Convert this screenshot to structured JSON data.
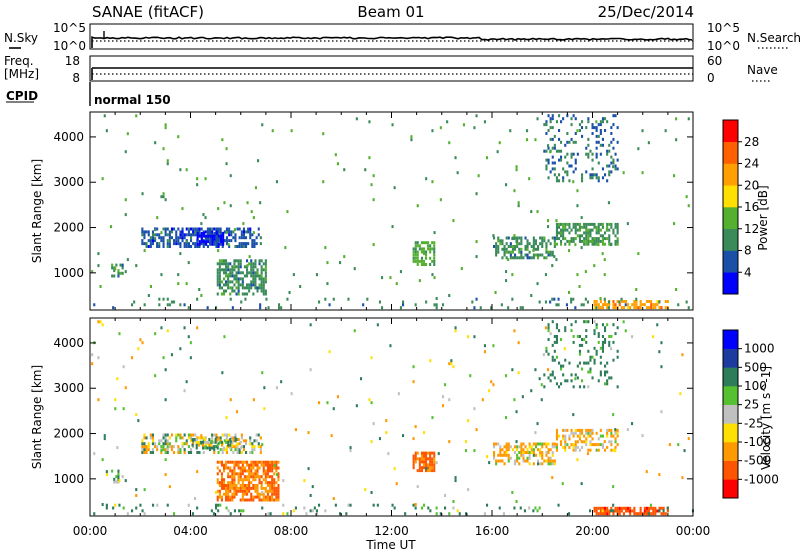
{
  "header": {
    "station": "SANAE (fitACF)",
    "beam": "Beam 01",
    "date": "25/Dec/2014"
  },
  "status_panels": {
    "nsky_label": "N.Sky",
    "nsearch_label": "N.Search",
    "freq_label_1": "Freq.",
    "freq_label_2": "[MHz]",
    "nave_label": "Nave",
    "cpid_label": "CPID",
    "cpid_value": "normal 150",
    "noise_ticks_left": [
      "10^5",
      "10^0"
    ],
    "noise_ticks_right": [
      "10^5",
      "10^0"
    ],
    "freq_ticks_left": [
      "18",
      "8"
    ],
    "nave_ticks_right": [
      "60",
      "0"
    ]
  },
  "colors": {
    "power_scale": [
      "#0000ff",
      "#1a50a8",
      "#3a8a5a",
      "#55b030",
      "#ffe000",
      "#ffa000",
      "#ff6000",
      "#ff0000"
    ],
    "velocity_scale": [
      "#ff0000",
      "#ff5500",
      "#ff9900",
      "#ffe000",
      "#c0c0c0",
      "#55c030",
      "#2e7d5a",
      "#1e3ca0",
      "#0000ff"
    ]
  },
  "chart_data": [
    {
      "type": "heatmap",
      "id": "power",
      "xlabel": "",
      "ylabel": "Slant Range [km]",
      "xlim": [
        0,
        24
      ],
      "ylim": [
        180,
        4550
      ],
      "yticks": [
        "1000",
        "2000",
        "3000",
        "4000"
      ],
      "colorbar_label": "Power [dB]",
      "colorbar_ticks": [
        "4",
        "8",
        "12",
        "16",
        "20",
        "24",
        "28"
      ],
      "colorbar_range": [
        0,
        32
      ],
      "regions": [
        {
          "t": [
            2.0,
            6.8
          ],
          "r": [
            1550,
            2000
          ],
          "v": 6,
          "density": 0.55
        },
        {
          "t": [
            4.2,
            5.3
          ],
          "r": [
            1600,
            1900
          ],
          "v": 3,
          "density": 0.8
        },
        {
          "t": [
            5.0,
            7.0
          ],
          "r": [
            500,
            1300
          ],
          "v": 10,
          "density": 0.65
        },
        {
          "t": [
            0.8,
            1.3
          ],
          "r": [
            900,
            1200
          ],
          "v": 10,
          "density": 0.5
        },
        {
          "t": [
            12.8,
            13.7
          ],
          "r": [
            1150,
            1700
          ],
          "v": 13,
          "density": 0.6
        },
        {
          "t": [
            16.0,
            18.5
          ],
          "r": [
            1300,
            1800
          ],
          "v": 10,
          "density": 0.55
        },
        {
          "t": [
            18.5,
            21.0
          ],
          "r": [
            1600,
            2100
          ],
          "v": 11,
          "density": 0.55
        },
        {
          "t": [
            20.0,
            23.0
          ],
          "r": [
            200,
            400
          ],
          "v": 22,
          "density": 0.75
        },
        {
          "t": [
            18.0,
            21.0
          ],
          "r": [
            3000,
            4500
          ],
          "v": 8,
          "density": 0.18
        },
        {
          "t": [
            0.0,
            24.0
          ],
          "r": [
            200,
            450
          ],
          "v": 9,
          "density": 0.08
        },
        {
          "t": [
            0.0,
            24.0
          ],
          "r": [
            400,
            4500
          ],
          "v": 12,
          "density": 0.012
        }
      ]
    },
    {
      "type": "heatmap",
      "id": "velocity",
      "xlabel": "Time UT",
      "ylabel": "Slant Range [km]",
      "xlim": [
        0,
        24
      ],
      "ylim": [
        180,
        4550
      ],
      "xticks": [
        "00:00",
        "04:00",
        "08:00",
        "12:00",
        "16:00",
        "20:00",
        "00:00"
      ],
      "yticks": [
        "1000",
        "2000",
        "3000",
        "4000"
      ],
      "colorbar_label": "Velocity [m s^-1]",
      "colorbar_ticks": [
        "1000",
        "500",
        "100",
        "25",
        "-25",
        "-100",
        "-500",
        "-1000"
      ],
      "colorbar_range": [
        -1200,
        1200
      ],
      "regions": [
        {
          "t": [
            2.0,
            6.8
          ],
          "r": [
            1550,
            2000
          ],
          "v": 0,
          "density": 0.45
        },
        {
          "t": [
            4.0,
            6.0
          ],
          "r": [
            1650,
            1900
          ],
          "v": 40,
          "density": 0.5
        },
        {
          "t": [
            5.0,
            7.5
          ],
          "r": [
            500,
            1400
          ],
          "v": -300,
          "density": 0.7
        },
        {
          "t": [
            0.8,
            1.3
          ],
          "r": [
            900,
            1200
          ],
          "v": 100,
          "density": 0.4
        },
        {
          "t": [
            12.8,
            13.7
          ],
          "r": [
            1150,
            1600
          ],
          "v": -350,
          "density": 0.75
        },
        {
          "t": [
            16.0,
            18.5
          ],
          "r": [
            1300,
            1800
          ],
          "v": -60,
          "density": 0.5
        },
        {
          "t": [
            18.5,
            21.0
          ],
          "r": [
            1600,
            2100
          ],
          "v": -80,
          "density": 0.5
        },
        {
          "t": [
            20.0,
            23.0
          ],
          "r": [
            200,
            380
          ],
          "v": -700,
          "density": 0.8
        },
        {
          "t": [
            18.0,
            21.0
          ],
          "r": [
            3000,
            4500
          ],
          "v": 150,
          "density": 0.16
        },
        {
          "t": [
            0.0,
            24.0
          ],
          "r": [
            200,
            450
          ],
          "v": 80,
          "density": 0.08
        },
        {
          "t": [
            0.0,
            24.0
          ],
          "r": [
            400,
            4500
          ],
          "v": 0,
          "density": 0.012
        }
      ]
    }
  ]
}
